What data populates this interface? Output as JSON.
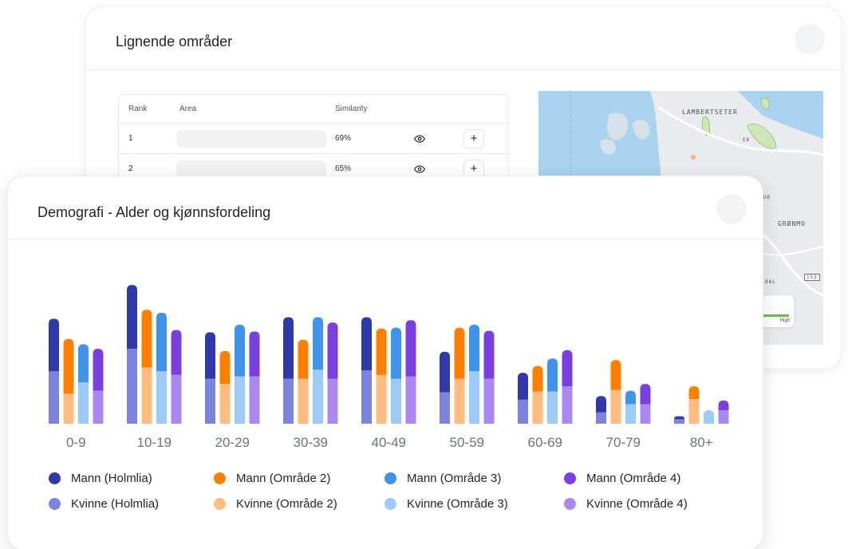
{
  "similar_areas": {
    "title": "Lignende områder",
    "table": {
      "headers": {
        "rank": "Rank",
        "area": "Area",
        "similarity": "Similarity"
      },
      "rows": [
        {
          "rank": "1",
          "similarity": "69%"
        },
        {
          "rank": "2",
          "similarity": "65%"
        }
      ]
    },
    "map": {
      "labels": {
        "lambertseter": "LAMBERTSETER",
        "e6": "E6",
        "grønmo": "GRØNMO",
        "road155": "155",
        "ud": "UD",
        "dal": "DAL"
      },
      "legend_high": "High"
    }
  },
  "demographics": {
    "title": "Demografi - Alder og kjønnsfordeling",
    "legend": [
      {
        "label": "Mann (Holmlia)",
        "color": "#2f3aa8"
      },
      {
        "label": "Mann (Område 2)",
        "color": "#ff7f00"
      },
      {
        "label": "Mann (Område 3)",
        "color": "#3f93e8"
      },
      {
        "label": "Mann (Område 4)",
        "color": "#7b3fe0"
      },
      {
        "label": "Kvinne (Holmlia)",
        "color": "#7d84df"
      },
      {
        "label": "Kvinne (Område 2)",
        "color": "#ffbb80"
      },
      {
        "label": "Kvinne (Område 3)",
        "color": "#9dcbf7"
      },
      {
        "label": "Kvinne (Område 4)",
        "color": "#a989ef"
      }
    ],
    "chart_data": {
      "type": "bar",
      "stacked": true,
      "categories": [
        "0-9",
        "10-19",
        "20-29",
        "30-39",
        "40-49",
        "50-59",
        "60-69",
        "70-79",
        "80+"
      ],
      "groups": [
        "Holmlia",
        "Område 2",
        "Område 3",
        "Område 4"
      ],
      "series": [
        {
          "name": "Kvinne (Holmlia)",
          "group": "Holmlia",
          "values": [
            7.0,
            10.0,
            6.0,
            6.0,
            7.1,
            4.2,
            3.2,
            1.5,
            0.6
          ]
        },
        {
          "name": "Mann (Holmlia)",
          "group": "Holmlia",
          "values": [
            7.0,
            8.5,
            6.2,
            8.2,
            7.1,
            5.4,
            3.6,
            2.2,
            0.4
          ]
        },
        {
          "name": "Kvinne (Område 2)",
          "group": "Område 2",
          "values": [
            4.0,
            7.5,
            5.3,
            6.0,
            6.5,
            6.0,
            4.3,
            4.5,
            3.3
          ]
        },
        {
          "name": "Mann (Område 2)",
          "group": "Område 2",
          "values": [
            7.3,
            7.7,
            4.4,
            5.2,
            6.2,
            6.8,
            3.4,
            4.0,
            1.7
          ]
        },
        {
          "name": "Kvinne (Område 3)",
          "group": "Område 3",
          "values": [
            5.5,
            7.0,
            6.3,
            7.2,
            6.0,
            7.0,
            4.3,
            2.6,
            1.8
          ]
        },
        {
          "name": "Mann (Område 3)",
          "group": "Område 3",
          "values": [
            5.1,
            7.8,
            6.9,
            7.0,
            6.8,
            6.2,
            4.4,
            1.8,
            0.0
          ]
        },
        {
          "name": "Kvinne (Område 4)",
          "group": "Område 4",
          "values": [
            4.4,
            6.5,
            6.3,
            6.0,
            6.3,
            6.0,
            5.0,
            2.6,
            1.8
          ]
        },
        {
          "name": "Mann (Område 4)",
          "group": "Område 4",
          "values": [
            5.6,
            6.0,
            6.0,
            7.5,
            7.5,
            6.4,
            4.8,
            2.7,
            1.3
          ]
        }
      ],
      "ylim": [
        0,
        20
      ],
      "grid": false,
      "legend_position": "bottom"
    }
  }
}
